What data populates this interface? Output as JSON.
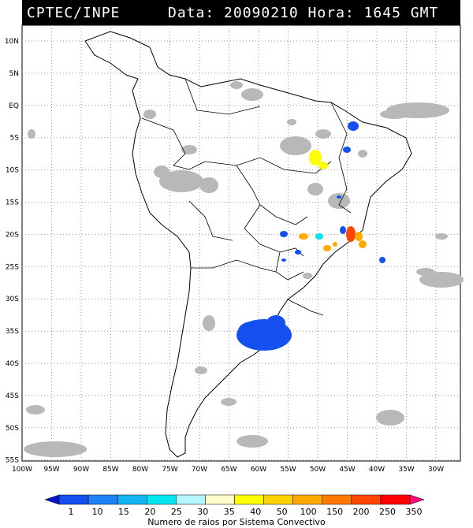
{
  "header": {
    "source": "CPTEC/INPE",
    "datetime": "Data: 20090210 Hora: 1645 GMT"
  },
  "axes": {
    "lat_labels": [
      "10N",
      "5N",
      "EQ",
      "5S",
      "10S",
      "15S",
      "20S",
      "25S",
      "30S",
      "35S",
      "40S",
      "45S",
      "50S",
      "55S"
    ],
    "lon_labels": [
      "100W",
      "95W",
      "90W",
      "85W",
      "80W",
      "75W",
      "70W",
      "65W",
      "60W",
      "55W",
      "50W",
      "45W",
      "40W",
      "35W",
      "30W"
    ]
  },
  "colorbar": {
    "title": "Numero de raios por Sistema Convectivo",
    "labels": [
      "1",
      "10",
      "15",
      "20",
      "25",
      "30",
      "35",
      "40",
      "50",
      "100",
      "150",
      "200",
      "250",
      "350"
    ],
    "colors": [
      "#0a14d0",
      "#1450f0",
      "#1e82f5",
      "#14b4f0",
      "#00e6f0",
      "#b4f5ff",
      "#fffac8",
      "#ffff00",
      "#ffd200",
      "#ffaa00",
      "#ff7800",
      "#ff4600",
      "#ff0000",
      "#ff0a78"
    ]
  }
}
